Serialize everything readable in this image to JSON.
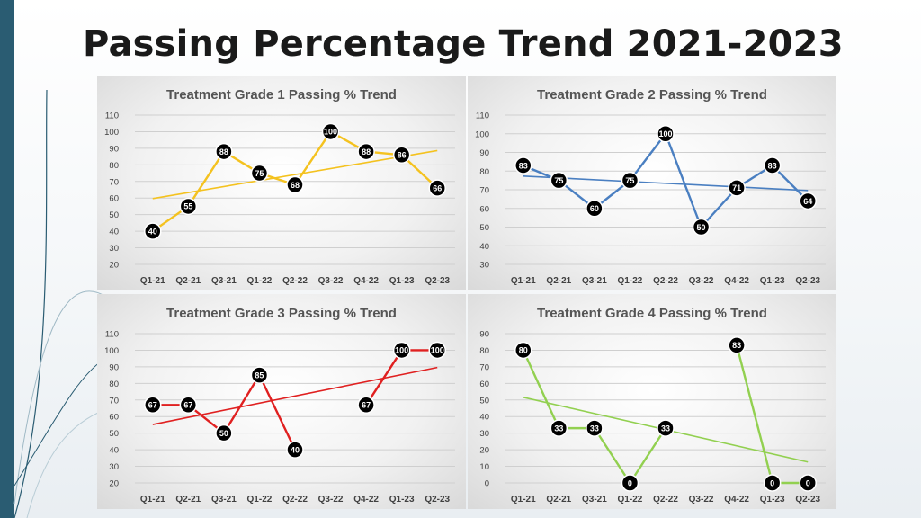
{
  "page": {
    "title": "Passing Percentage Trend 2021-2023"
  },
  "theme": {
    "background": "#ffffff",
    "left_bar": "#2a5c72",
    "marker_fill": "#000000",
    "marker_text": "#ffffff",
    "gridline": "#cfcfcf"
  },
  "chart_data": [
    {
      "type": "line",
      "title": "Treatment Grade 1 Passing % Trend",
      "categories": [
        "Q1-21",
        "Q2-21",
        "Q3-21",
        "Q1-22",
        "Q2-22",
        "Q3-22",
        "Q4-22",
        "Q1-23",
        "Q2-23"
      ],
      "series": [
        {
          "values": [
            40,
            55,
            88,
            75,
            68,
            100,
            88,
            86,
            66
          ],
          "color": "#f4c21f"
        }
      ],
      "trendline": {
        "start": 59.7,
        "end": 88.6
      },
      "ylim": [
        20,
        110
      ],
      "yticks": [
        20,
        30,
        40,
        50,
        60,
        70,
        80,
        90,
        100,
        110
      ],
      "data_labels": [
        "40",
        "55",
        "88",
        "75",
        "68",
        "100",
        "88",
        "86",
        "66"
      ],
      "grid": true,
      "legend": "none"
    },
    {
      "type": "line",
      "title": "Treatment Grade 2 Passing % Trend",
      "categories": [
        "Q1-21",
        "Q2-21",
        "Q3-21",
        "Q1-22",
        "Q2-22",
        "Q3-22",
        "Q4-22",
        "Q1-23",
        "Q2-23"
      ],
      "series": [
        {
          "values": [
            83,
            75,
            60,
            75,
            100,
            50,
            71,
            83,
            64
          ],
          "color": "#4a7fc1"
        }
      ],
      "trendline": {
        "start": 77.3,
        "end": 69.6
      },
      "ylim": [
        30,
        110
      ],
      "yticks": [
        30,
        40,
        50,
        60,
        70,
        80,
        90,
        100,
        110
      ],
      "data_labels": [
        "83",
        "75",
        "60",
        "75",
        "100",
        "50",
        "71",
        "83",
        "64"
      ],
      "grid": true,
      "legend": "none"
    },
    {
      "type": "line",
      "title": "Treatment Grade 3 Passing % Trend",
      "categories": [
        "Q1-21",
        "Q2-21",
        "Q3-21",
        "Q1-22",
        "Q2-22",
        "Q3-22",
        "Q4-22",
        "Q1-23",
        "Q2-23"
      ],
      "series": [
        {
          "values": [
            67,
            67,
            50,
            85,
            40,
            null,
            67,
            100,
            100
          ],
          "color": "#e02020"
        }
      ],
      "trendline": {
        "start": 55.2,
        "end": 89.6
      },
      "ylim": [
        20,
        110
      ],
      "yticks": [
        20,
        30,
        40,
        50,
        60,
        70,
        80,
        90,
        100,
        110
      ],
      "data_labels": [
        "67",
        "67",
        "50",
        "85",
        "40",
        "",
        "67",
        "100",
        "100"
      ],
      "grid": true,
      "legend": "none"
    },
    {
      "type": "line",
      "title": "Treatment Grade 4 Passing % Trend",
      "categories": [
        "Q1-21",
        "Q2-21",
        "Q3-21",
        "Q1-22",
        "Q2-22",
        "Q3-22",
        "Q4-22",
        "Q1-23",
        "Q2-23"
      ],
      "series": [
        {
          "values": [
            80,
            33,
            33,
            0,
            33,
            null,
            83,
            0,
            0
          ],
          "color": "#92d050"
        }
      ],
      "trendline": {
        "start": 51.6,
        "end": 12.6
      },
      "ylim": [
        0,
        90
      ],
      "yticks": [
        0,
        10,
        20,
        30,
        40,
        50,
        60,
        70,
        80,
        90
      ],
      "data_labels": [
        "80",
        "33",
        "33",
        "0",
        "33",
        "",
        "83",
        "0",
        "0"
      ],
      "grid": true,
      "legend": "none"
    }
  ]
}
